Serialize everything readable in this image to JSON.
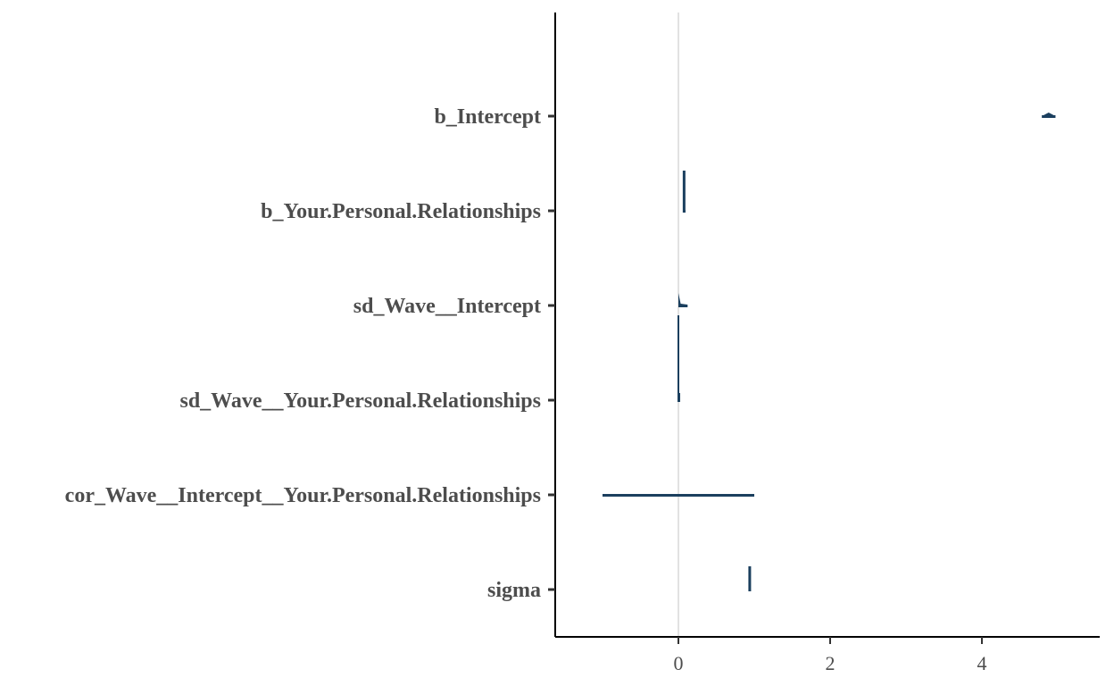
{
  "chart_data": {
    "type": "interval",
    "title": "",
    "xlabel": "",
    "ylabel": "",
    "xlim": [
      -1.6,
      5.5
    ],
    "x_ticks": [
      0,
      2,
      4
    ],
    "x_tick_labels": [
      "0",
      "2",
      "4"
    ],
    "reference_line": 0,
    "grid": false,
    "color": "#1b3f5e",
    "reference_color": "#d9d9d9",
    "parameters": [
      {
        "label": "b_Intercept",
        "low": 4.79,
        "high": 4.97,
        "center": 4.88
      },
      {
        "label": "b_Your.Personal.Relationships",
        "low": 0.07,
        "high": 0.08,
        "center": 0.075
      },
      {
        "label": "sd_Wave__Intercept",
        "low": 0.0,
        "high": 0.12,
        "center": 0.02
      },
      {
        "label": "sd_Wave__Your.Personal.Relationships",
        "low": 0.0,
        "high": 0.01,
        "center": 0.003
      },
      {
        "label": "cor_Wave__Intercept__Your.Personal.Relationships",
        "low": -1.0,
        "high": 1.0,
        "center": 0.0
      },
      {
        "label": "sigma",
        "low": 0.93,
        "high": 0.95,
        "center": 0.94
      }
    ]
  }
}
